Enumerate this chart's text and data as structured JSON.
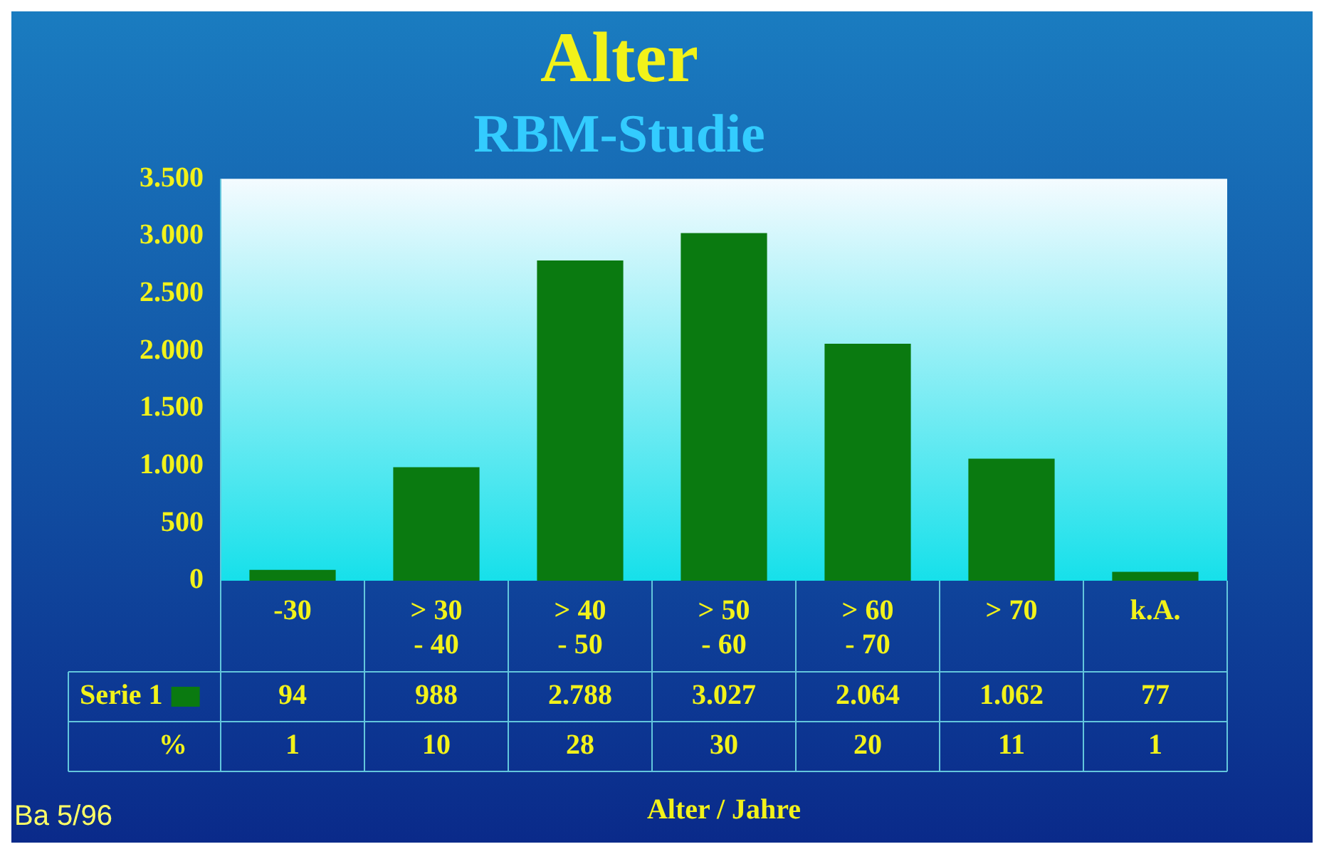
{
  "chart_data": {
    "type": "bar",
    "title": "Alter",
    "subtitle": "RBM-Studie",
    "xlabel": "Alter / Jahre",
    "categories": [
      "-30",
      "> 30 - 40",
      "> 40 - 50",
      "> 50 - 60",
      "> 60 - 70",
      "> 70",
      "k.A."
    ],
    "series": [
      {
        "name": "Serie 1",
        "color": "#0a7a10",
        "values": [
          94,
          988,
          2788,
          3027,
          2064,
          1062,
          77
        ],
        "value_labels": [
          "94",
          "988",
          "2.788",
          "3.027",
          "2.064",
          "1.062",
          "77"
        ]
      }
    ],
    "ylim": [
      0,
      3500
    ],
    "yticks": [
      0,
      500,
      {
        "value": 1000,
        "label": "1.000"
      },
      {
        "value": 1500,
        "label": "1.500"
      },
      {
        "value": 2000,
        "label": "2.000"
      },
      {
        "value": 2500,
        "label": "2.500"
      },
      {
        "value": 3000,
        "label": "3.000"
      },
      {
        "value": 3500,
        "label": "3.500"
      }
    ],
    "grid": false,
    "legend": "bottom",
    "annotations": [
      "%",
      "1",
      "10",
      "28",
      "30",
      "20",
      "11",
      "1",
      "Ba 5/96"
    ]
  }
}
